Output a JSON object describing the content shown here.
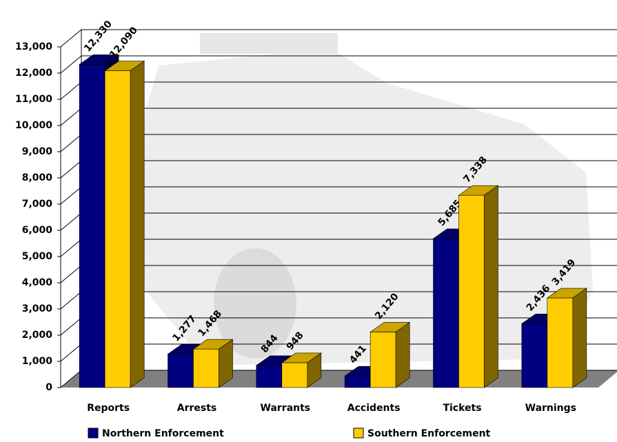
{
  "chart_data": {
    "type": "bar3d",
    "categories": [
      "Reports",
      "Arrests",
      "Warrants",
      "Accidents",
      "Tickets",
      "Warnings"
    ],
    "series": [
      {
        "name": "Northern Enforcement",
        "color": "#000080",
        "values": [
          12330,
          1277,
          844,
          441,
          5685,
          2436
        ],
        "value_labels": [
          "12,330",
          "1,277",
          "844",
          "441",
          "5,685",
          "2,436"
        ]
      },
      {
        "name": "Southern Enforcement",
        "color": "#ffcc00",
        "values": [
          12090,
          1468,
          948,
          2120,
          7338,
          3419
        ],
        "value_labels": [
          "12,090",
          "1,468",
          "948",
          "2,120",
          "7,338",
          "3,419"
        ]
      }
    ],
    "ylim": [
      0,
      13000
    ],
    "yticks": [
      0,
      {
        "value": 1000,
        "label": "1,000"
      },
      {
        "value": 2000,
        "label": "2,000"
      },
      {
        "value": 3000,
        "label": "3,000"
      },
      {
        "value": 4000,
        "label": "4,000"
      },
      {
        "value": 5000,
        "label": "5,000"
      },
      {
        "value": 6000,
        "label": "6,000"
      },
      {
        "value": 7000,
        "label": "7,000"
      },
      {
        "value": 8000,
        "label": "8,000"
      },
      {
        "value": 9000,
        "label": "9,000"
      },
      {
        "value": 10000,
        "label": "10,000"
      },
      {
        "value": 11000,
        "label": "11,000"
      },
      {
        "value": 12000,
        "label": "12,000"
      },
      {
        "value": 13000,
        "label": "13,000"
      }
    ],
    "grid": true
  }
}
